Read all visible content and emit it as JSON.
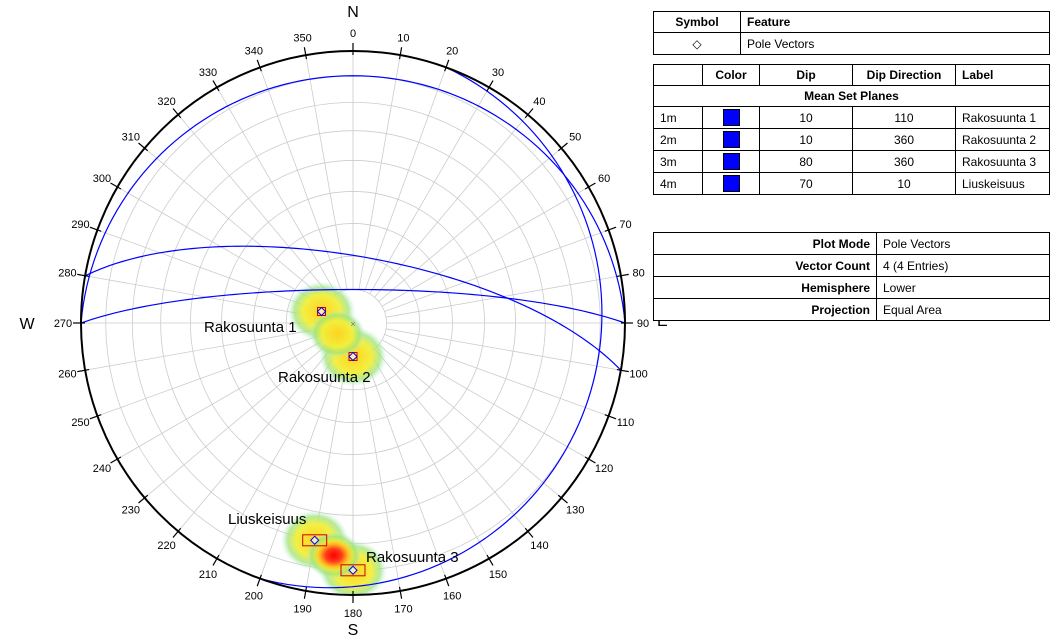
{
  "compass": {
    "north": "N",
    "south": "S",
    "east": "E",
    "west": "W"
  },
  "azimuth_ticks": [
    "0",
    "10",
    "20",
    "30",
    "40",
    "50",
    "60",
    "70",
    "80",
    "90",
    "100",
    "110",
    "120",
    "130",
    "140",
    "150",
    "160",
    "170",
    "180",
    "190",
    "200",
    "210",
    "220",
    "230",
    "240",
    "250",
    "260",
    "270",
    "280",
    "290",
    "300",
    "310",
    "320",
    "330",
    "340",
    "350"
  ],
  "legend": {
    "headers": {
      "symbol": "Symbol",
      "feature": "Feature"
    },
    "rows": [
      {
        "symbol": "◇",
        "feature": "Pole Vectors"
      }
    ]
  },
  "mean_sets": {
    "headers": {
      "id": "",
      "color": "Color",
      "dip": "Dip",
      "dip_direction": "Dip Direction",
      "label": "Label"
    },
    "section_title": "Mean Set Planes",
    "rows": [
      {
        "id": "1m",
        "color": "#0000ff",
        "dip": "10",
        "dip_direction": "110",
        "label": "Rakosuunta 1"
      },
      {
        "id": "2m",
        "color": "#0000ff",
        "dip": "10",
        "dip_direction": "360",
        "label": "Rakosuunta 2"
      },
      {
        "id": "3m",
        "color": "#0000ff",
        "dip": "80",
        "dip_direction": "360",
        "label": "Rakosuunta 3"
      },
      {
        "id": "4m",
        "color": "#0000ff",
        "dip": "70",
        "dip_direction": "10",
        "label": "Liuskeisuus"
      }
    ]
  },
  "plot_info": [
    {
      "key": "Plot Mode",
      "value": "Pole Vectors"
    },
    {
      "key": "Vector Count",
      "value": "4 (4 Entries)"
    },
    {
      "key": "Hemisphere",
      "value": "Lower"
    },
    {
      "key": "Projection",
      "value": "Equal Area"
    }
  ],
  "set_labels": {
    "set1": "Rakosuunta 1",
    "set2": "Rakosuunta 2",
    "set3": "Rakosuunta 3",
    "set4": "Liuskeisuus"
  },
  "colors": {
    "great_circle": "#0000ff",
    "symbol": "#0000ff",
    "box": "#cc0000",
    "grid": "#cccccc"
  },
  "chart_data": {
    "type": "scatter",
    "projection": "Equal Area",
    "hemisphere": "Lower",
    "plot_mode": "Pole Vectors",
    "contours": "density shading (yellow / green / red) around pole clusters",
    "poles": [
      {
        "label": "Rakosuunta 1",
        "dip": 10,
        "dip_direction": 110
      },
      {
        "label": "Rakosuunta 2",
        "dip": 10,
        "dip_direction": 360
      },
      {
        "label": "Rakosuunta 3",
        "dip": 80,
        "dip_direction": 360
      },
      {
        "label": "Liuskeisuus",
        "dip": 70,
        "dip_direction": 10
      }
    ]
  }
}
